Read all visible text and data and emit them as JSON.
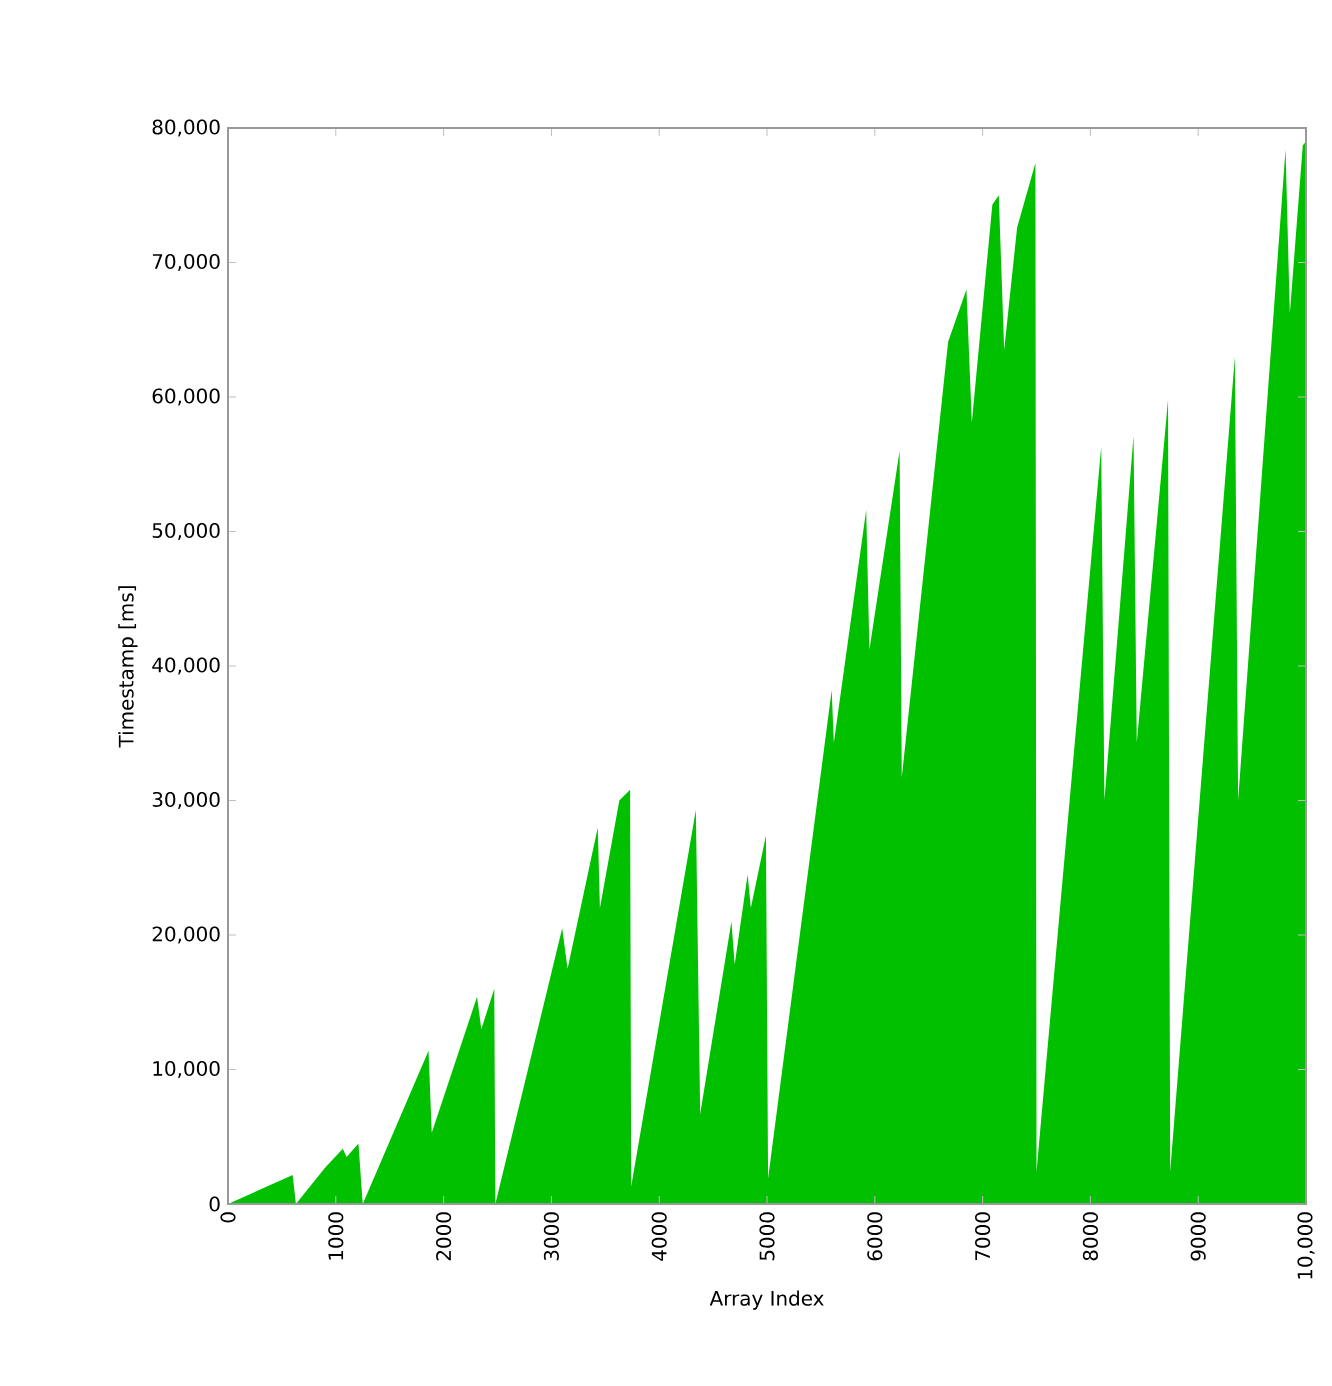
{
  "chart_data": {
    "type": "area",
    "xlabel": "Array Index",
    "ylabel": "Timestamp [ms]",
    "x": [
      0,
      600,
      630,
      900,
      1065,
      1100,
      1210,
      1250,
      1860,
      1890,
      2310,
      2350,
      2470,
      2480,
      3100,
      3150,
      3430,
      3450,
      3630,
      3730,
      3740,
      4340,
      4380,
      4670,
      4700,
      4820,
      4850,
      4990,
      5010,
      5600,
      5620,
      5920,
      5950,
      6230,
      6250,
      6680,
      6850,
      6900,
      7090,
      7150,
      7200,
      7320,
      7490,
      7500,
      8100,
      8130,
      8400,
      8430,
      8720,
      8740,
      9340,
      9370,
      9810,
      9850,
      9970,
      10000
    ],
    "values": [
      0,
      2150,
      0,
      2700,
      4100,
      3500,
      4500,
      0,
      11400,
      5300,
      15400,
      13000,
      16000,
      0,
      20500,
      17500,
      28000,
      22000,
      30000,
      30800,
      1300,
      29300,
      6700,
      21000,
      17800,
      24500,
      22000,
      27400,
      1900,
      38200,
      34300,
      51600,
      41200,
      56000,
      31700,
      64100,
      68000,
      58100,
      74300,
      75000,
      63500,
      72600,
      77400,
      2400,
      56300,
      30000,
      57100,
      34300,
      59800,
      2400,
      63000,
      30000,
      78400,
      66200,
      78700,
      79000
    ],
    "color": "#00c000",
    "xlim": [
      0,
      10000
    ],
    "ylim": [
      0,
      80000
    ],
    "xticks": [
      0,
      1000,
      2000,
      3000,
      4000,
      5000,
      6000,
      7000,
      8000,
      9000,
      {
        "value": 10000,
        "label": "10,000"
      }
    ],
    "yticks": [
      0,
      {
        "value": 10000,
        "label": "10,000"
      },
      {
        "value": 20000,
        "label": "20,000"
      },
      {
        "value": 30000,
        "label": "30,000"
      },
      {
        "value": 40000,
        "label": "40,000"
      },
      {
        "value": 50000,
        "label": "50,000"
      },
      {
        "value": 60000,
        "label": "60,000"
      },
      {
        "value": 70000,
        "label": "70,000"
      },
      {
        "value": 80000,
        "label": "80,000"
      }
    ]
  }
}
